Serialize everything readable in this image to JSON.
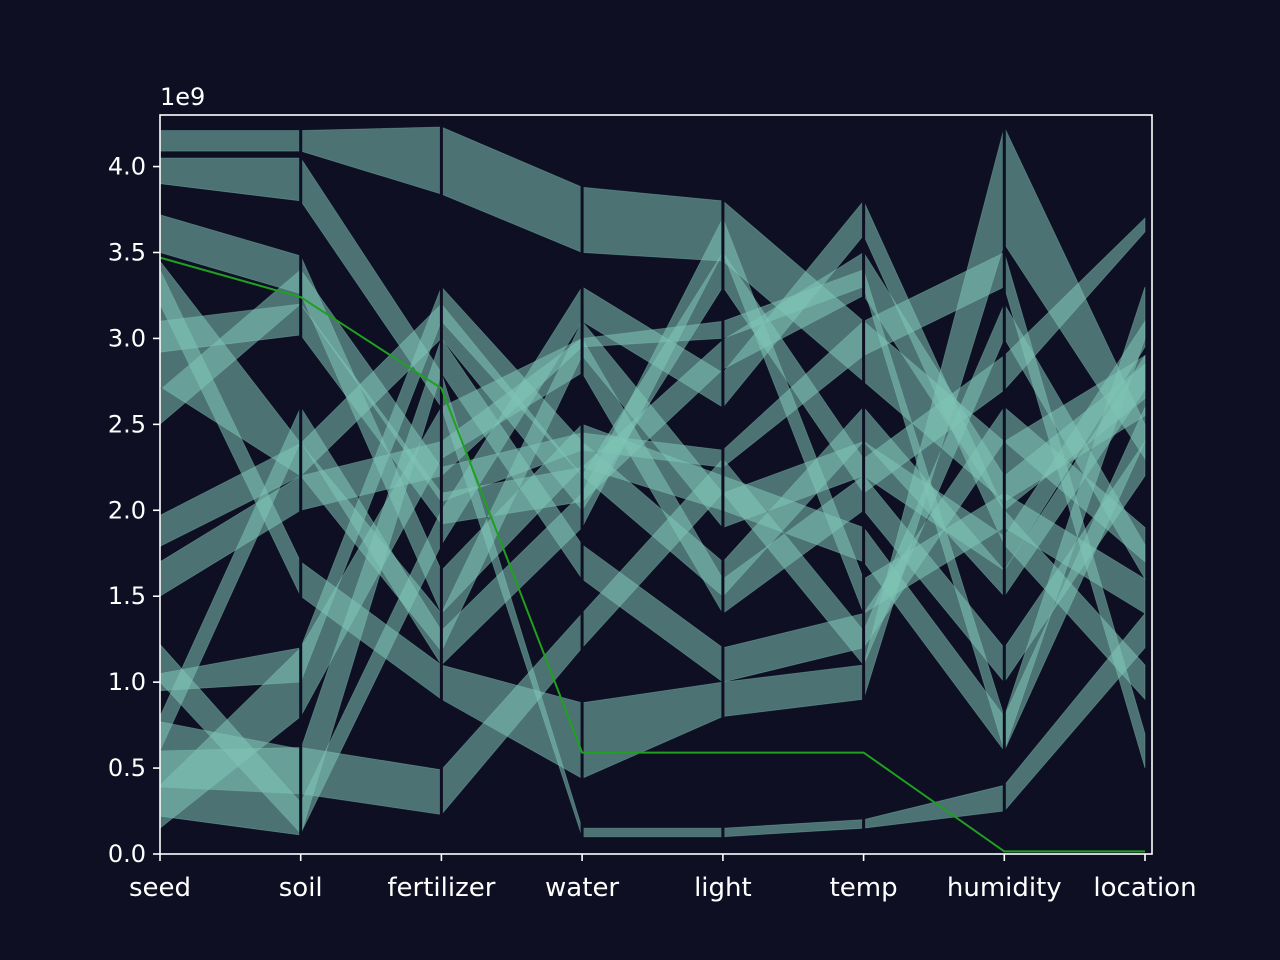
{
  "colors": {
    "background": "#0e0f23",
    "spine": "#ffffff",
    "band": "#7fc4b6",
    "highlight": "#1fa01f"
  },
  "chart_data": {
    "type": "parallel-coordinates",
    "title": "",
    "xlabel": "",
    "ylabel": "",
    "axis_offset_label": "1e9",
    "ylim": [
      0,
      4300000000
    ],
    "y_ticks": [
      "0.0",
      "0.5",
      "1.0",
      "1.5",
      "2.0",
      "2.5",
      "3.0",
      "3.5",
      "4.0"
    ],
    "dimensions": [
      "seed",
      "soil",
      "fertilizer",
      "water",
      "light",
      "temp",
      "humidity",
      "location"
    ],
    "grid": false,
    "highlighted_path": {
      "values": [
        3470000000,
        3240000000,
        2710000000,
        590000000,
        590000000,
        590000000,
        15000000,
        15000000
      ]
    },
    "ranges": [
      {
        "values": [
          [
            4090000000,
            4210000000
          ],
          [
            4090000000,
            4210000000
          ],
          [
            3840000000,
            4230000000
          ],
          [
            3500000000,
            3880000000
          ],
          [
            3450000000,
            3800000000
          ],
          [
            2750000000,
            3100000000
          ],
          [
            2050000000,
            2400000000
          ],
          [
            2550000000,
            2900000000
          ]
        ]
      },
      {
        "values": [
          [
            3500000000,
            3720000000
          ],
          [
            3260000000,
            3480000000
          ],
          [
            1400000000,
            1650000000
          ],
          [
            2250000000,
            2500000000
          ],
          [
            2000000000,
            2200000000
          ],
          [
            1700000000,
            1900000000
          ],
          [
            600000000,
            800000000
          ],
          [
            2400000000,
            2600000000
          ]
        ]
      },
      {
        "values": [
          [
            2920000000,
            3100000000
          ],
          [
            3020000000,
            3200000000
          ],
          [
            1920000000,
            2100000000
          ],
          [
            2050000000,
            2250000000
          ],
          [
            2820000000,
            2990000000
          ],
          [
            3250000000,
            3500000000
          ],
          [
            2000000000,
            2200000000
          ],
          [
            2650000000,
            2850000000
          ]
        ]
      },
      {
        "values": [
          [
            2720000000,
            3450000000
          ],
          [
            2200000000,
            2390000000
          ],
          [
            1180000000,
            1400000000
          ],
          [
            2900000000,
            3100000000
          ],
          [
            1900000000,
            2100000000
          ],
          [
            2200000000,
            2400000000
          ],
          [
            1650000000,
            1850000000
          ],
          [
            2950000000,
            3100000000
          ]
        ]
      },
      {
        "values": [
          [
            1790000000,
            1970000000
          ],
          [
            2200000000,
            2390000000
          ],
          [
            3000000000,
            3200000000
          ],
          [
            2000000000,
            2200000000
          ],
          [
            3300000000,
            3500000000
          ],
          [
            2100000000,
            2300000000
          ],
          [
            2700000000,
            2900000000
          ],
          [
            3620000000,
            3700000000
          ]
        ]
      },
      {
        "values": [
          [
            220000000,
            770000000
          ],
          [
            110000000,
            610000000
          ],
          [
            2800000000,
            3000000000
          ],
          [
            1600000000,
            1800000000
          ],
          [
            1000000000,
            1200000000
          ],
          [
            1200000000,
            1400000000
          ],
          [
            2400000000,
            2600000000
          ],
          [
            1700000000,
            1900000000
          ]
        ]
      },
      {
        "values": [
          [
            390000000,
            600000000
          ],
          [
            350000000,
            620000000
          ],
          [
            230000000,
            490000000
          ],
          [
            1200000000,
            1400000000
          ],
          [
            2100000000,
            2300000000
          ],
          [
            1100000000,
            1300000000
          ],
          [
            3000000000,
            3200000000
          ],
          [
            1600000000,
            1800000000
          ]
        ]
      },
      {
        "values": [
          [
            150000000,
            400000000
          ],
          [
            800000000,
            1200000000
          ],
          [
            2300000000,
            2600000000
          ],
          [
            2800000000,
            3000000000
          ],
          [
            1400000000,
            1600000000
          ],
          [
            2000000000,
            2200000000
          ],
          [
            1000000000,
            1200000000
          ],
          [
            2200000000,
            2400000000
          ]
        ]
      },
      {
        "values": [
          [
            1000000000,
            1220000000
          ],
          [
            120000000,
            300000000
          ],
          [
            1800000000,
            2000000000
          ],
          [
            3100000000,
            3300000000
          ],
          [
            2600000000,
            2800000000
          ],
          [
            3600000000,
            3800000000
          ],
          [
            1800000000,
            2000000000
          ],
          [
            900000000,
            1100000000
          ]
        ]
      },
      {
        "values": [
          [
            3900000000,
            4050000000
          ],
          [
            3800000000,
            4050000000
          ],
          [
            2600000000,
            2800000000
          ],
          [
            100000000,
            150000000
          ],
          [
            100000000,
            150000000
          ],
          [
            150000000,
            200000000
          ],
          [
            250000000,
            400000000
          ],
          [
            1200000000,
            1400000000
          ]
        ]
      },
      {
        "values": [
          [
            3200000000,
            3400000000
          ],
          [
            1500000000,
            1700000000
          ],
          [
            900000000,
            1100000000
          ],
          [
            440000000,
            880000000
          ],
          [
            800000000,
            1000000000
          ],
          [
            900000000,
            1100000000
          ],
          [
            3550000000,
            4230000000
          ],
          [
            2300000000,
            2500000000
          ]
        ]
      },
      {
        "values": [
          [
            2500000000,
            2700000000
          ],
          [
            3200000000,
            3400000000
          ],
          [
            2050000000,
            2250000000
          ],
          [
            2350000000,
            2450000000
          ],
          [
            2250000000,
            2350000000
          ],
          [
            2900000000,
            3100000000
          ],
          [
            3300000000,
            3500000000
          ],
          [
            500000000,
            700000000
          ]
        ]
      },
      {
        "values": [
          [
            1500000000,
            1700000000
          ],
          [
            2000000000,
            2200000000
          ],
          [
            2200000000,
            2400000000
          ],
          [
            2950000000,
            3000000000
          ],
          [
            3000000000,
            3100000000
          ],
          [
            3300000000,
            3400000000
          ],
          [
            600000000,
            800000000
          ],
          [
            3000000000,
            3300000000
          ]
        ]
      },
      {
        "values": [
          [
            600000000,
            800000000
          ],
          [
            2400000000,
            2600000000
          ],
          [
            1100000000,
            1300000000
          ],
          [
            1900000000,
            2100000000
          ],
          [
            3500000000,
            3700000000
          ],
          [
            1400000000,
            1600000000
          ],
          [
            1900000000,
            2100000000
          ],
          [
            1400000000,
            1600000000
          ]
        ]
      },
      {
        "values": [
          [
            950000000,
            1050000000
          ],
          [
            1000000000,
            1200000000
          ],
          [
            3100000000,
            3300000000
          ],
          [
            2200000000,
            2400000000
          ],
          [
            1500000000,
            1700000000
          ],
          [
            2400000000,
            2600000000
          ],
          [
            1500000000,
            1650000000
          ],
          [
            2700000000,
            2900000000
          ]
        ]
      }
    ]
  }
}
